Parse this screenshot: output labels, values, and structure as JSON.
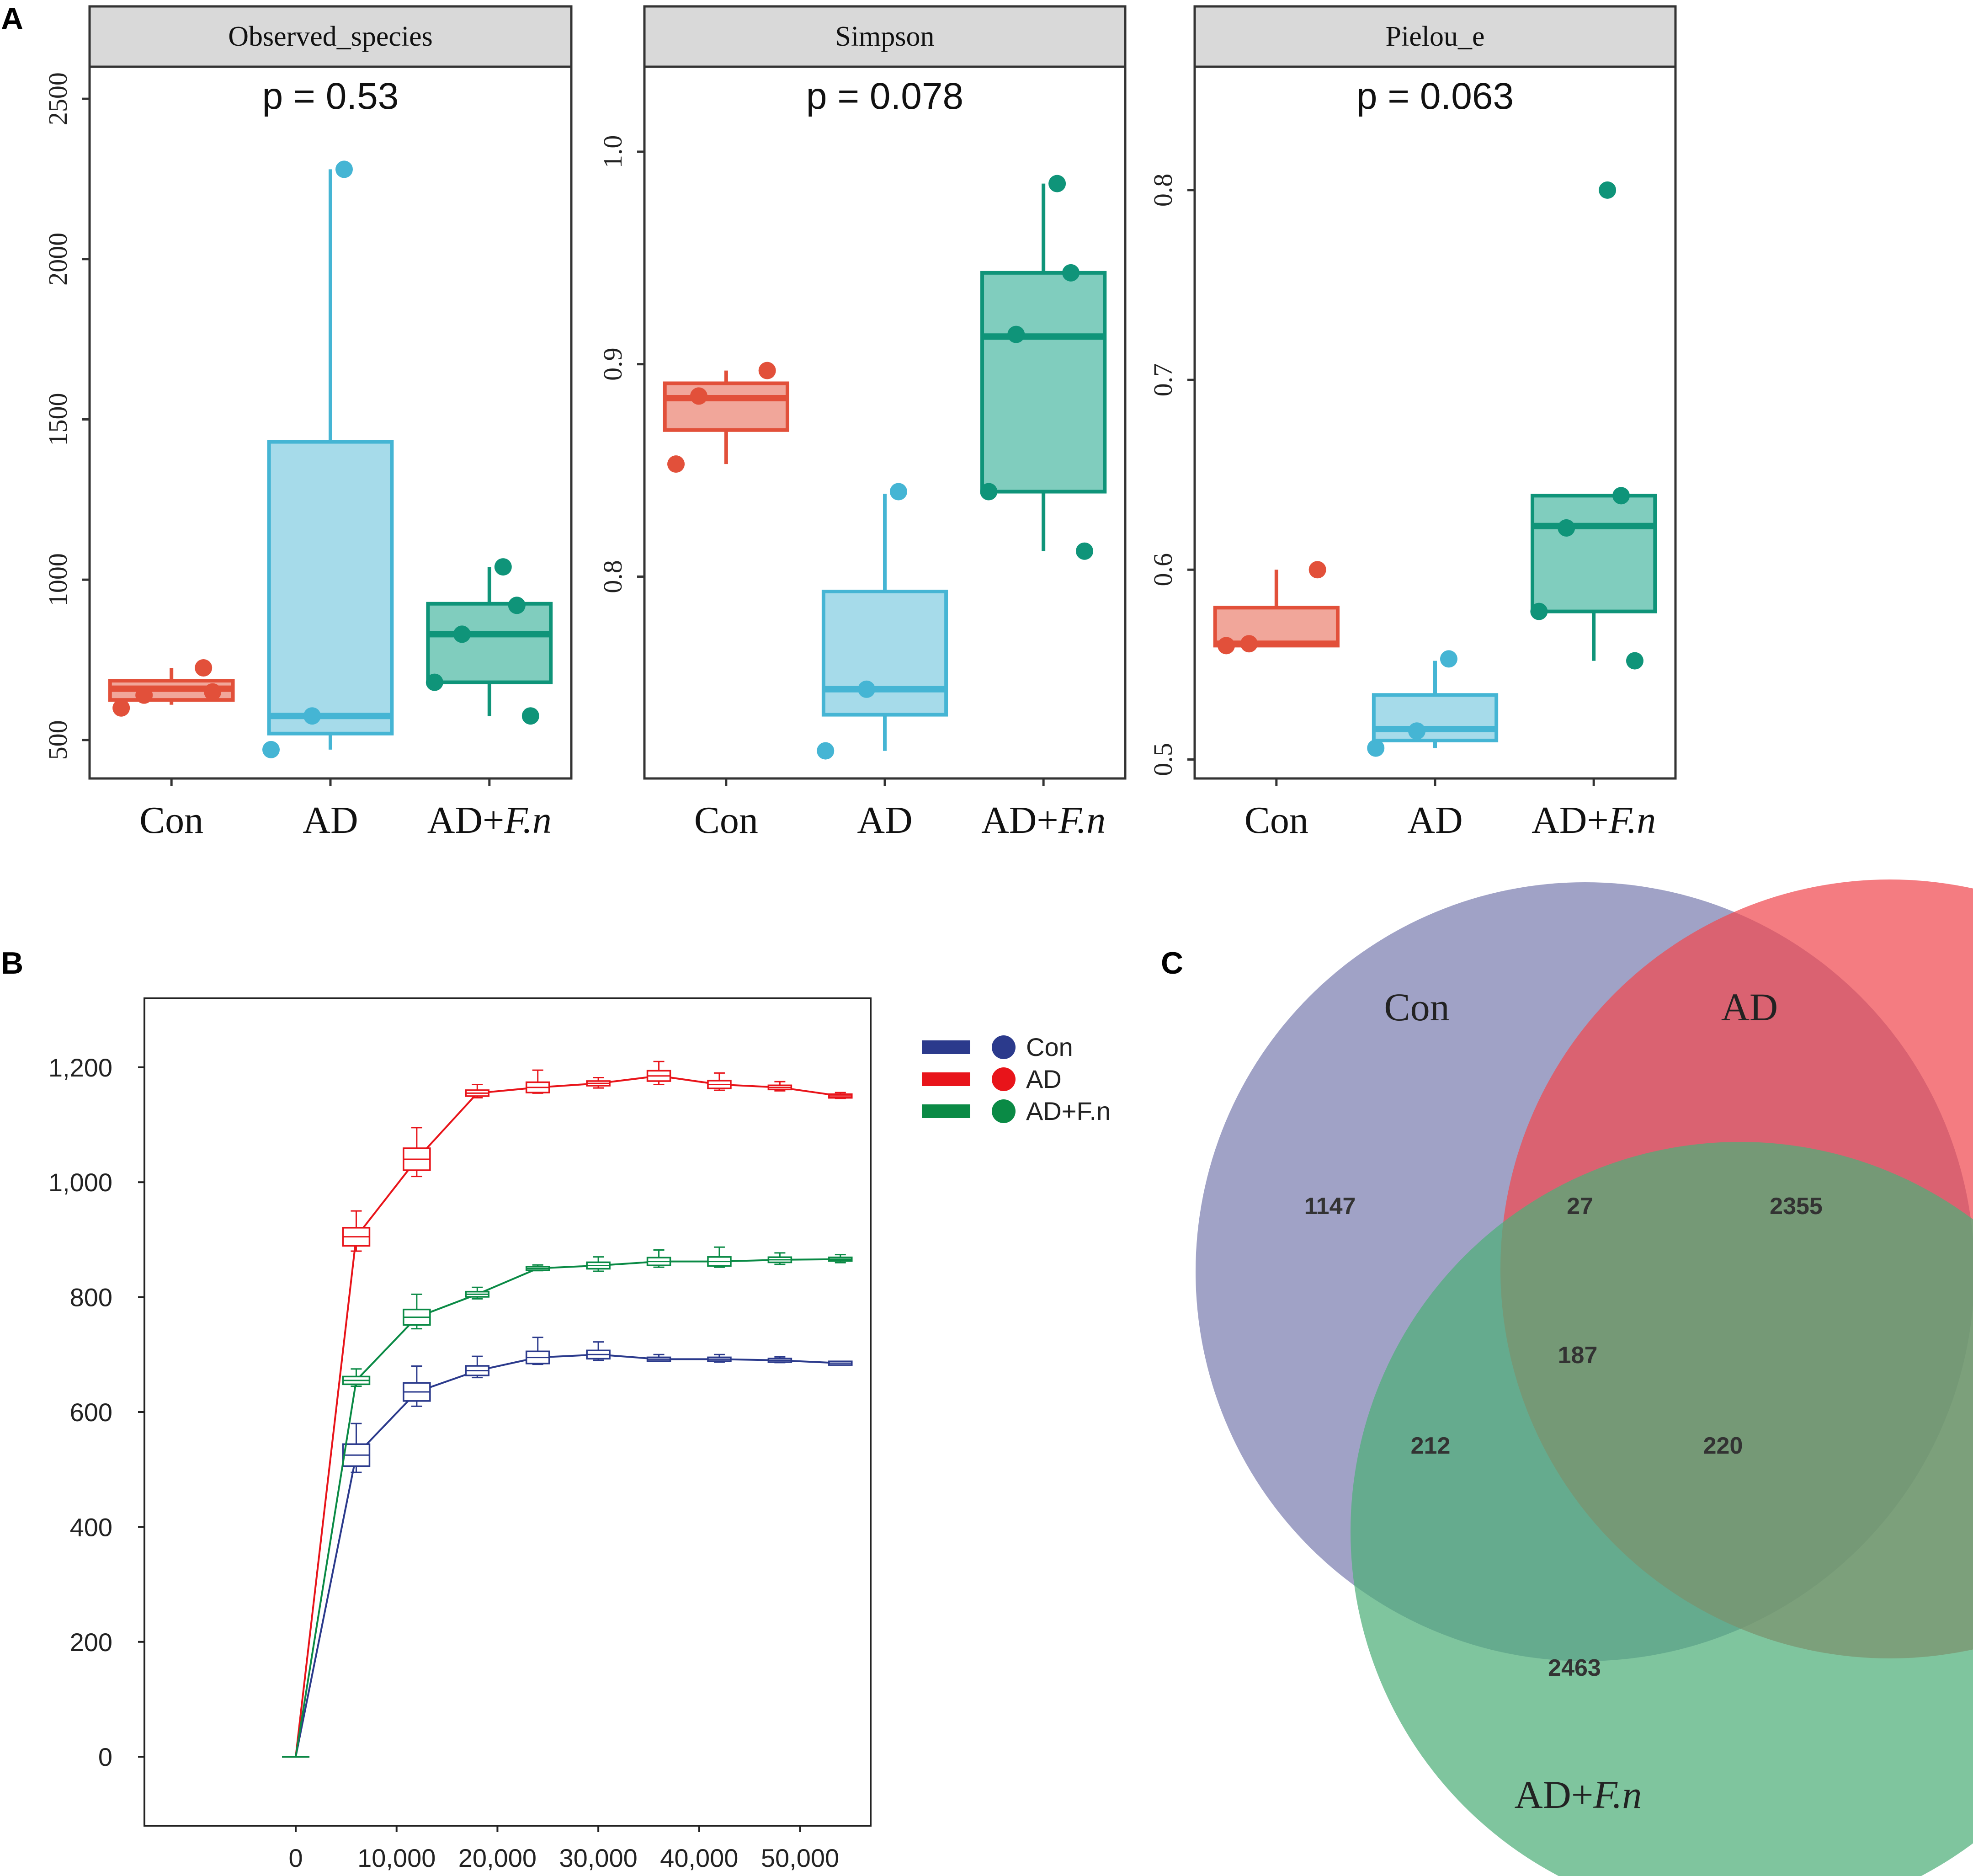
{
  "panel_labels": {
    "a": "A",
    "b": "B",
    "c": "C"
  },
  "colors": {
    "con": "#E2503A",
    "ad": "#45B5D4",
    "adfn": "#0F9479",
    "con_fill": "#F1A69A",
    "ad_fill": "#A6DBEA",
    "adfn_fill": "#80CDBE",
    "strip_fill": "#D9D9D9",
    "rare_con": "#2B3A8C",
    "rare_ad": "#E8141A",
    "rare_adfn": "#0A8A45",
    "venn_con": "#7B7EB0",
    "venn_ad": "#F04A50",
    "venn_adfn": "#4DAE78"
  },
  "chart_data": [
    {
      "type": "box",
      "panel": "A",
      "title": "Observed_species",
      "annotation": "p = 0.53",
      "categories": [
        "Con",
        "AD",
        "AD+F.n"
      ],
      "category_display": [
        {
          "main": "Con",
          "italic": ""
        },
        {
          "main": "AD",
          "italic": ""
        },
        {
          "main": "AD+",
          "italic": "F.n"
        }
      ],
      "yticks": [
        500,
        1000,
        1500,
        2000,
        2500
      ],
      "tick_labels": [
        "500",
        "1000",
        "1500",
        "2000",
        "2500"
      ],
      "ylim": [
        380,
        2600
      ],
      "boxes": [
        {
          "q1": 625,
          "median": 660,
          "q3": 685,
          "whisker_low": 610,
          "whisker_high": 725,
          "points": [
            600,
            640,
            650,
            725
          ]
        },
        {
          "q1": 520,
          "median": 575,
          "q3": 1430,
          "whisker_low": 470,
          "whisker_high": 2280,
          "points": [
            470,
            575,
            2280
          ]
        },
        {
          "q1": 680,
          "median": 830,
          "q3": 925,
          "whisker_low": 575,
          "whisker_high": 1040,
          "points": [
            575,
            680,
            830,
            920,
            1040
          ]
        }
      ]
    },
    {
      "type": "box",
      "panel": "A",
      "title": "Simpson",
      "annotation": "p = 0.078",
      "categories": [
        "Con",
        "AD",
        "AD+F.n"
      ],
      "category_display": [
        {
          "main": "Con",
          "italic": ""
        },
        {
          "main": "AD",
          "italic": ""
        },
        {
          "main": "AD+",
          "italic": "F.n"
        }
      ],
      "yticks": [
        0.8,
        0.9,
        1.0
      ],
      "tick_labels": [
        "0.8",
        "0.9",
        "1.0"
      ],
      "ylim": [
        0.705,
        1.04
      ],
      "boxes": [
        {
          "q1": 0.869,
          "median": 0.884,
          "q3": 0.891,
          "whisker_low": 0.853,
          "whisker_high": 0.897,
          "points": [
            0.853,
            0.885,
            0.897
          ]
        },
        {
          "q1": 0.735,
          "median": 0.747,
          "q3": 0.793,
          "whisker_low": 0.718,
          "whisker_high": 0.839,
          "points": [
            0.718,
            0.747,
            0.84
          ]
        },
        {
          "q1": 0.84,
          "median": 0.913,
          "q3": 0.943,
          "whisker_low": 0.812,
          "whisker_high": 0.985,
          "points": [
            0.812,
            0.84,
            0.914,
            0.943,
            0.985
          ]
        }
      ]
    },
    {
      "type": "box",
      "panel": "A",
      "title": "Pielou_e",
      "annotation": "p = 0.063",
      "categories": [
        "Con",
        "AD",
        "AD+F.n"
      ],
      "category_display": [
        {
          "main": "Con",
          "italic": ""
        },
        {
          "main": "AD",
          "italic": ""
        },
        {
          "main": "AD+",
          "italic": "F.n"
        }
      ],
      "yticks": [
        0.5,
        0.6,
        0.7,
        0.8
      ],
      "tick_labels": [
        "0.5",
        "0.6",
        "0.7",
        "0.8"
      ],
      "ylim": [
        0.49,
        0.865
      ],
      "boxes": [
        {
          "q1": 0.56,
          "median": 0.561,
          "q3": 0.58,
          "whisker_low": 0.56,
          "whisker_high": 0.6,
          "points": [
            0.56,
            0.561,
            0.6
          ]
        },
        {
          "q1": 0.51,
          "median": 0.516,
          "q3": 0.534,
          "whisker_low": 0.506,
          "whisker_high": 0.552,
          "points": [
            0.506,
            0.515,
            0.553
          ]
        },
        {
          "q1": 0.578,
          "median": 0.623,
          "q3": 0.639,
          "whisker_low": 0.552,
          "whisker_high": 0.639,
          "points": [
            0.552,
            0.578,
            0.622,
            0.639,
            0.8
          ]
        }
      ]
    },
    {
      "type": "line",
      "panel": "B",
      "subtype": "rarefaction with boxplots",
      "xlim": [
        -15000,
        57000
      ],
      "ylim": [
        -120,
        1320
      ],
      "xticks": [
        0,
        10000,
        20000,
        30000,
        40000,
        50000
      ],
      "xtick_labels": [
        "0",
        "10,000",
        "20,000",
        "30,000",
        "40,000",
        "50,000"
      ],
      "yticks": [
        0,
        200,
        400,
        600,
        800,
        1000,
        1200
      ],
      "ytick_labels": [
        "0",
        "200",
        "400",
        "600",
        "800",
        "1,000",
        "1,200"
      ],
      "x": [
        0,
        6000,
        12000,
        18000,
        24000,
        30000,
        36000,
        42000,
        48000,
        54000
      ],
      "legend": [
        "Con",
        "AD",
        "AD+F.n"
      ],
      "series": [
        {
          "name": "Con",
          "values": [
            0,
            525,
            635,
            672,
            695,
            700,
            692,
            692,
            690,
            685
          ],
          "spread": [
            [
              0,
              0
            ],
            [
              30,
              55
            ],
            [
              25,
              45
            ],
            [
              12,
              25
            ],
            [
              12,
              35
            ],
            [
              10,
              22
            ],
            [
              4,
              8
            ],
            [
              5,
              8
            ],
            [
              4,
              6
            ],
            [
              3,
              3
            ]
          ]
        },
        {
          "name": "AD",
          "values": [
            0,
            905,
            1040,
            1155,
            1165,
            1172,
            1185,
            1170,
            1165,
            1150
          ],
          "spread": [
            [
              0,
              0
            ],
            [
              25,
              45
            ],
            [
              30,
              55
            ],
            [
              8,
              15
            ],
            [
              10,
              30
            ],
            [
              8,
              10
            ],
            [
              15,
              25
            ],
            [
              10,
              20
            ],
            [
              6,
              10
            ],
            [
              4,
              6
            ]
          ]
        },
        {
          "name": "AD+F.n",
          "values": [
            0,
            655,
            765,
            805,
            850,
            855,
            862,
            862,
            865,
            866
          ],
          "spread": [
            [
              0,
              0
            ],
            [
              10,
              20
            ],
            [
              20,
              40
            ],
            [
              8,
              12
            ],
            [
              4,
              6
            ],
            [
              10,
              15
            ],
            [
              10,
              20
            ],
            [
              10,
              25
            ],
            [
              8,
              12
            ],
            [
              6,
              8
            ]
          ]
        }
      ]
    },
    {
      "type": "venn",
      "panel": "C",
      "sets": [
        "Con",
        "AD",
        "AD+F.n"
      ],
      "set_display": [
        {
          "main": "Con",
          "italic": ""
        },
        {
          "main": "AD",
          "italic": ""
        },
        {
          "main": "AD+",
          "italic": "F.n"
        }
      ],
      "regions": {
        "con_only": "1147",
        "ad_only": "2355",
        "adfn_only": "2463",
        "con_ad": "27",
        "con_adfn": "212",
        "ad_adfn": "220",
        "all": "187"
      }
    }
  ]
}
